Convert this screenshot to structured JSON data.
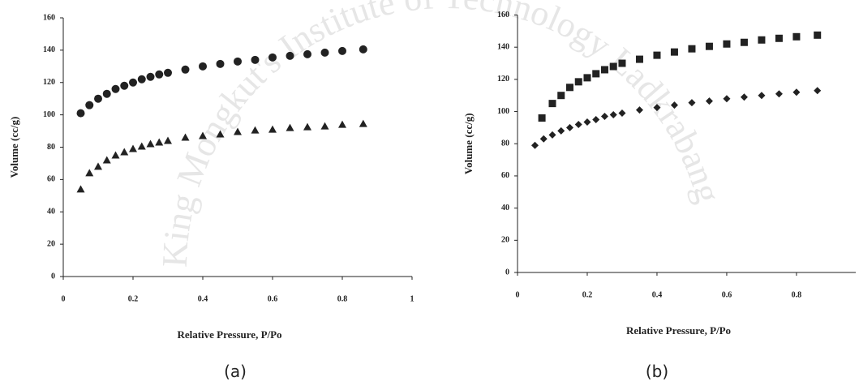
{
  "watermark": "King Mongkut's Institute of Technology Ladkrabang",
  "chart_data": [
    {
      "type": "scatter",
      "caption": "(a)",
      "x_label": "Relative Pressure, P/Po",
      "y_label": "Volume (cc/g)",
      "xlim": [
        0,
        1
      ],
      "xticks": [
        0,
        0.2,
        0.4,
        0.6,
        0.8,
        1
      ],
      "ylim": [
        0,
        160
      ],
      "yticks": [
        0,
        20,
        40,
        60,
        80,
        100,
        120,
        140,
        160
      ],
      "series": [
        {
          "marker": "circle",
          "color": "#222",
          "x": [
            0.05,
            0.075,
            0.1,
            0.125,
            0.15,
            0.175,
            0.2,
            0.225,
            0.25,
            0.275,
            0.3,
            0.35,
            0.4,
            0.45,
            0.5,
            0.55,
            0.6,
            0.65,
            0.7,
            0.75,
            0.8,
            0.86
          ],
          "values": [
            101,
            106,
            110,
            113,
            116,
            118,
            120,
            122,
            123.5,
            125,
            126,
            128,
            130,
            131.5,
            133,
            134,
            135.5,
            136.5,
            137.5,
            138.5,
            139.5,
            140.5
          ]
        },
        {
          "marker": "triangle",
          "color": "#222",
          "x": [
            0.05,
            0.075,
            0.1,
            0.125,
            0.15,
            0.175,
            0.2,
            0.225,
            0.25,
            0.275,
            0.3,
            0.35,
            0.4,
            0.45,
            0.5,
            0.55,
            0.6,
            0.65,
            0.7,
            0.75,
            0.8,
            0.86
          ],
          "values": [
            54,
            64,
            68,
            72,
            75,
            77,
            79,
            80.5,
            82,
            83,
            84,
            86,
            87,
            88,
            89.5,
            90.5,
            91,
            92,
            92.5,
            93,
            94,
            94.5
          ]
        }
      ]
    },
    {
      "type": "scatter",
      "caption": "(b)",
      "x_label": "Relative Pressure, P/Po",
      "y_label": "Volume (cc/g)",
      "xlim": [
        0,
        0.97
      ],
      "xticks": [
        0,
        0.2,
        0.4,
        0.6,
        0.8
      ],
      "ylim": [
        0,
        160
      ],
      "yticks": [
        0,
        20,
        40,
        60,
        80,
        100,
        120,
        140,
        160
      ],
      "series": [
        {
          "marker": "square",
          "color": "#222",
          "x": [
            0.07,
            0.1,
            0.125,
            0.15,
            0.175,
            0.2,
            0.225,
            0.25,
            0.275,
            0.3,
            0.35,
            0.4,
            0.45,
            0.5,
            0.55,
            0.6,
            0.65,
            0.7,
            0.75,
            0.8,
            0.86
          ],
          "values": [
            96,
            105,
            110,
            115,
            118.5,
            121,
            123.5,
            126,
            128,
            130,
            132.5,
            135,
            137,
            139,
            140.5,
            142,
            143,
            144.5,
            145.5,
            146.5,
            147.5
          ]
        },
        {
          "marker": "diamond",
          "color": "#222",
          "x": [
            0.05,
            0.075,
            0.1,
            0.125,
            0.15,
            0.175,
            0.2,
            0.225,
            0.25,
            0.275,
            0.3,
            0.35,
            0.4,
            0.45,
            0.5,
            0.55,
            0.6,
            0.65,
            0.7,
            0.75,
            0.8,
            0.86
          ],
          "values": [
            79,
            83,
            85.5,
            88,
            90,
            92,
            93.5,
            95,
            97,
            98,
            99,
            101,
            102.5,
            104,
            105.5,
            106.5,
            108,
            109,
            110,
            111,
            112,
            113
          ]
        }
      ]
    }
  ]
}
